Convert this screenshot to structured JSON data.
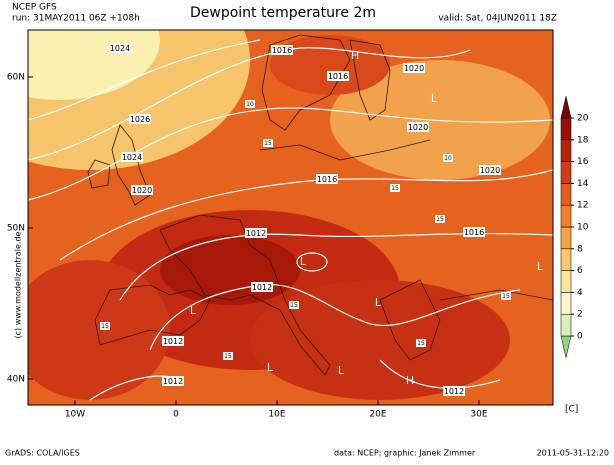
{
  "header": {
    "model": "NCEP GFS",
    "run": "run: 31MAY2011 06Z +108h",
    "title": "Dewpoint temperature 2m",
    "valid": "valid: Sat, 04JUN2011 18Z"
  },
  "map": {
    "lat_ticks": [
      {
        "value": 60,
        "label": "60N"
      },
      {
        "value": 50,
        "label": "50N"
      },
      {
        "value": 40,
        "label": "40N"
      }
    ],
    "lon_ticks": [
      {
        "value": -10,
        "label": "10W"
      },
      {
        "value": 0,
        "label": "0"
      },
      {
        "value": 10,
        "label": "10E"
      },
      {
        "value": 20,
        "label": "20E"
      },
      {
        "value": 30,
        "label": "30E"
      }
    ],
    "isobar_labels": [
      "1024",
      "1016",
      "1016",
      "1020",
      "1026",
      "1024",
      "1020",
      "1020",
      "1020",
      "1016",
      "1012",
      "1016",
      "1012",
      "1012",
      "1012",
      "1012"
    ],
    "pressure_centers": [
      "H",
      "H",
      "L",
      "L",
      "L",
      "L",
      "L",
      "L",
      "L"
    ],
    "contour_labels": [
      "10",
      "10",
      "15",
      "15",
      "15",
      "15",
      "15",
      "15",
      "15",
      "15"
    ],
    "copyright": "(c)  www.modellzentrale.de"
  },
  "colorbar": {
    "ticks": [
      0,
      2,
      4,
      6,
      8,
      10,
      12,
      14,
      16,
      18,
      20
    ],
    "unit": "[C]",
    "colors": [
      "#8fd67a",
      "#d8f0c0",
      "#fbf6c8",
      "#f8e69a",
      "#f7c86a",
      "#f4a445",
      "#ee7f2e",
      "#e65c20",
      "#d43a18",
      "#b82010",
      "#9a1008",
      "#7a0404"
    ]
  },
  "footer": {
    "left": "GrADS: COLA/IGES",
    "center": "data: NCEP; graphic: Janek Zimmer",
    "right": "2011-05-31-12:20"
  }
}
